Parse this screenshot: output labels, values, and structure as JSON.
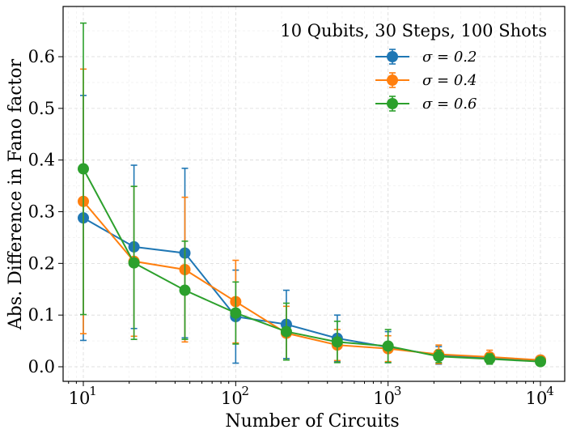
{
  "chart_data": {
    "type": "line",
    "title": "",
    "xlabel": "Number of Circuits",
    "ylabel": "Abs. Difference in Fano factor",
    "xscale": "log",
    "xlim": [
      10,
      10000
    ],
    "ylim": [
      0.0,
      0.6
    ],
    "x_tick_values": [
      10,
      100,
      1000,
      10000
    ],
    "x_tick_labels": [
      "10",
      "10",
      "10",
      "10"
    ],
    "x_tick_exponents": [
      "1",
      "2",
      "3",
      "4"
    ],
    "y_tick_values": [
      0.0,
      0.1,
      0.2,
      0.3,
      0.4,
      0.5,
      0.6
    ],
    "y_tick_labels": [
      "0.0",
      "0.1",
      "0.2",
      "0.3",
      "0.4",
      "0.5",
      "0.6"
    ],
    "grid": true,
    "legend_placement": "top-right",
    "legend_title": "10 Qubits, 30 Steps, 100 Shots",
    "x": [
      10,
      21.5,
      46.4,
      100,
      215,
      464,
      1000,
      2150,
      4640,
      10000
    ],
    "series": [
      {
        "name": "σ = 0.2",
        "color": "#1f77b4",
        "values": [
          0.288,
          0.232,
          0.22,
          0.097,
          0.082,
          0.055,
          0.038,
          0.022,
          0.017,
          0.013
        ],
        "errors": [
          0.237,
          0.158,
          0.164,
          0.09,
          0.066,
          0.045,
          0.03,
          0.017,
          0.01,
          0.007
        ]
      },
      {
        "name": "σ = 0.4",
        "color": "#ff7f0e",
        "values": [
          0.32,
          0.204,
          0.188,
          0.126,
          0.065,
          0.042,
          0.035,
          0.024,
          0.019,
          0.013
        ],
        "errors": [
          0.256,
          0.145,
          0.14,
          0.08,
          0.052,
          0.03,
          0.025,
          0.018,
          0.013,
          0.008
        ]
      },
      {
        "name": "σ = 0.6",
        "color": "#2ca02c",
        "values": [
          0.383,
          0.201,
          0.148,
          0.104,
          0.068,
          0.048,
          0.04,
          0.02,
          0.015,
          0.01
        ],
        "errors": [
          0.282,
          0.148,
          0.095,
          0.06,
          0.055,
          0.04,
          0.032,
          0.012,
          0.01,
          0.006
        ]
      }
    ]
  }
}
